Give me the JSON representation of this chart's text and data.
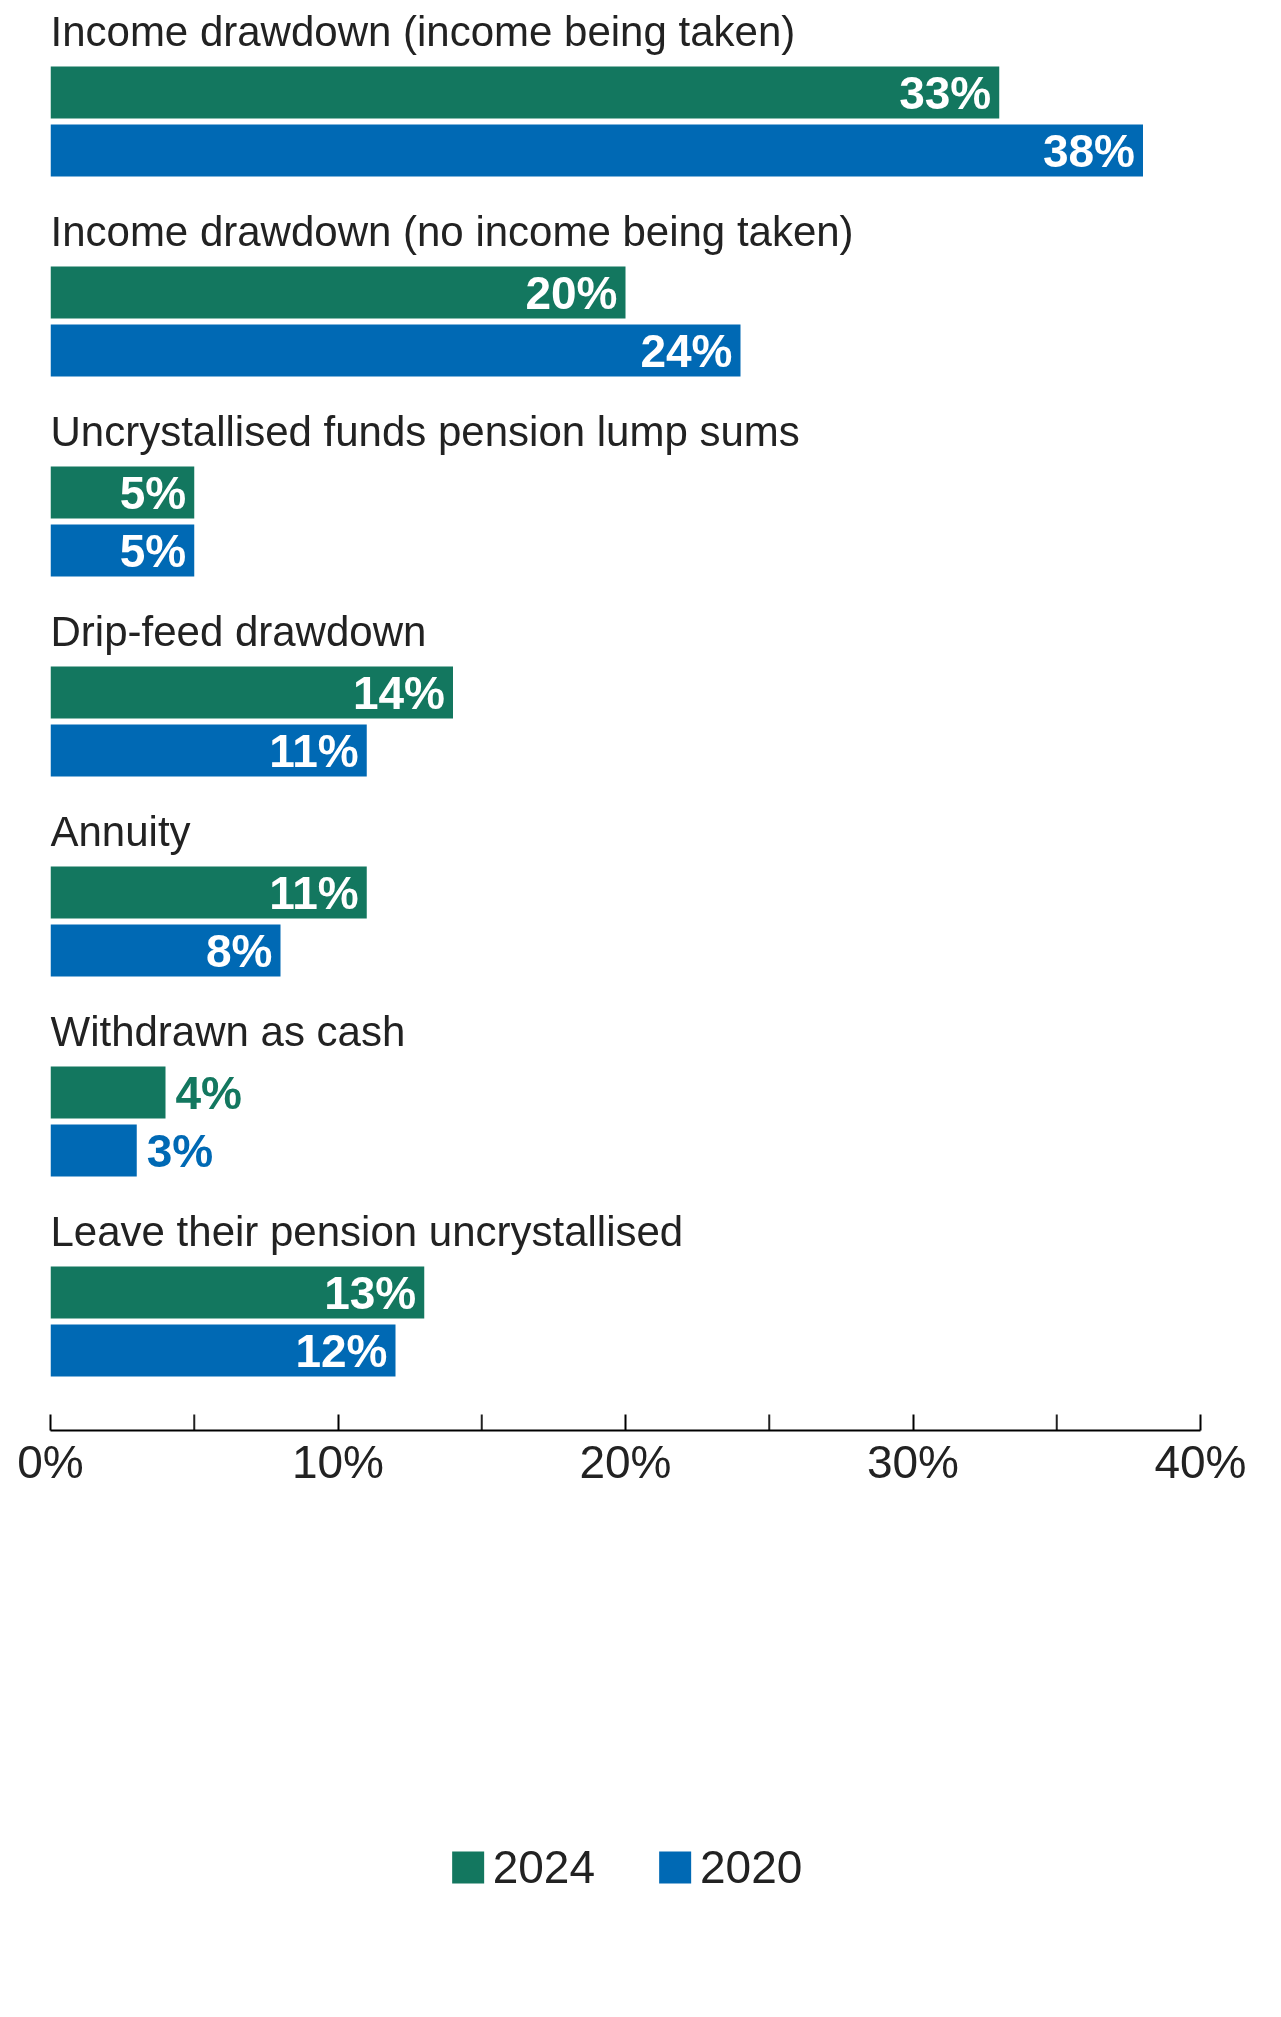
{
  "chart_data": {
    "type": "bar",
    "orientation": "horizontal",
    "categories": [
      "Income drawdown (income being taken)",
      "Income drawdown (no income being taken)",
      "Uncrystallised funds pension lump sums",
      "Drip-feed drawdown",
      "Annuity",
      "Withdrawn as cash",
      "Leave their pension uncrystallised"
    ],
    "series": [
      {
        "name": "2024",
        "color": "#13775f",
        "values": [
          33,
          20,
          5,
          14,
          11,
          4,
          13
        ],
        "value_labels": [
          "33%",
          "20%",
          "5%",
          "14%",
          "11%",
          "4%",
          "13%"
        ]
      },
      {
        "name": "2020",
        "color": "#0069b4",
        "values": [
          38,
          24,
          5,
          11,
          8,
          3,
          12
        ],
        "value_labels": [
          "38%",
          "24%",
          "5%",
          "11%",
          "8%",
          "3%",
          "12%"
        ]
      }
    ],
    "xlim": [
      0,
      40
    ],
    "xticks": [
      {
        "value": 0,
        "label": "0%"
      },
      {
        "value": 5,
        "label": null
      },
      {
        "value": 10,
        "label": "10%"
      },
      {
        "value": 15,
        "label": null
      },
      {
        "value": 20,
        "label": "20%"
      },
      {
        "value": 25,
        "label": null
      },
      {
        "value": 30,
        "label": "30%"
      },
      {
        "value": 35,
        "label": null
      },
      {
        "value": 40,
        "label": "40%"
      }
    ],
    "grid": false,
    "legend": "bottom",
    "tick_labels": "x"
  }
}
